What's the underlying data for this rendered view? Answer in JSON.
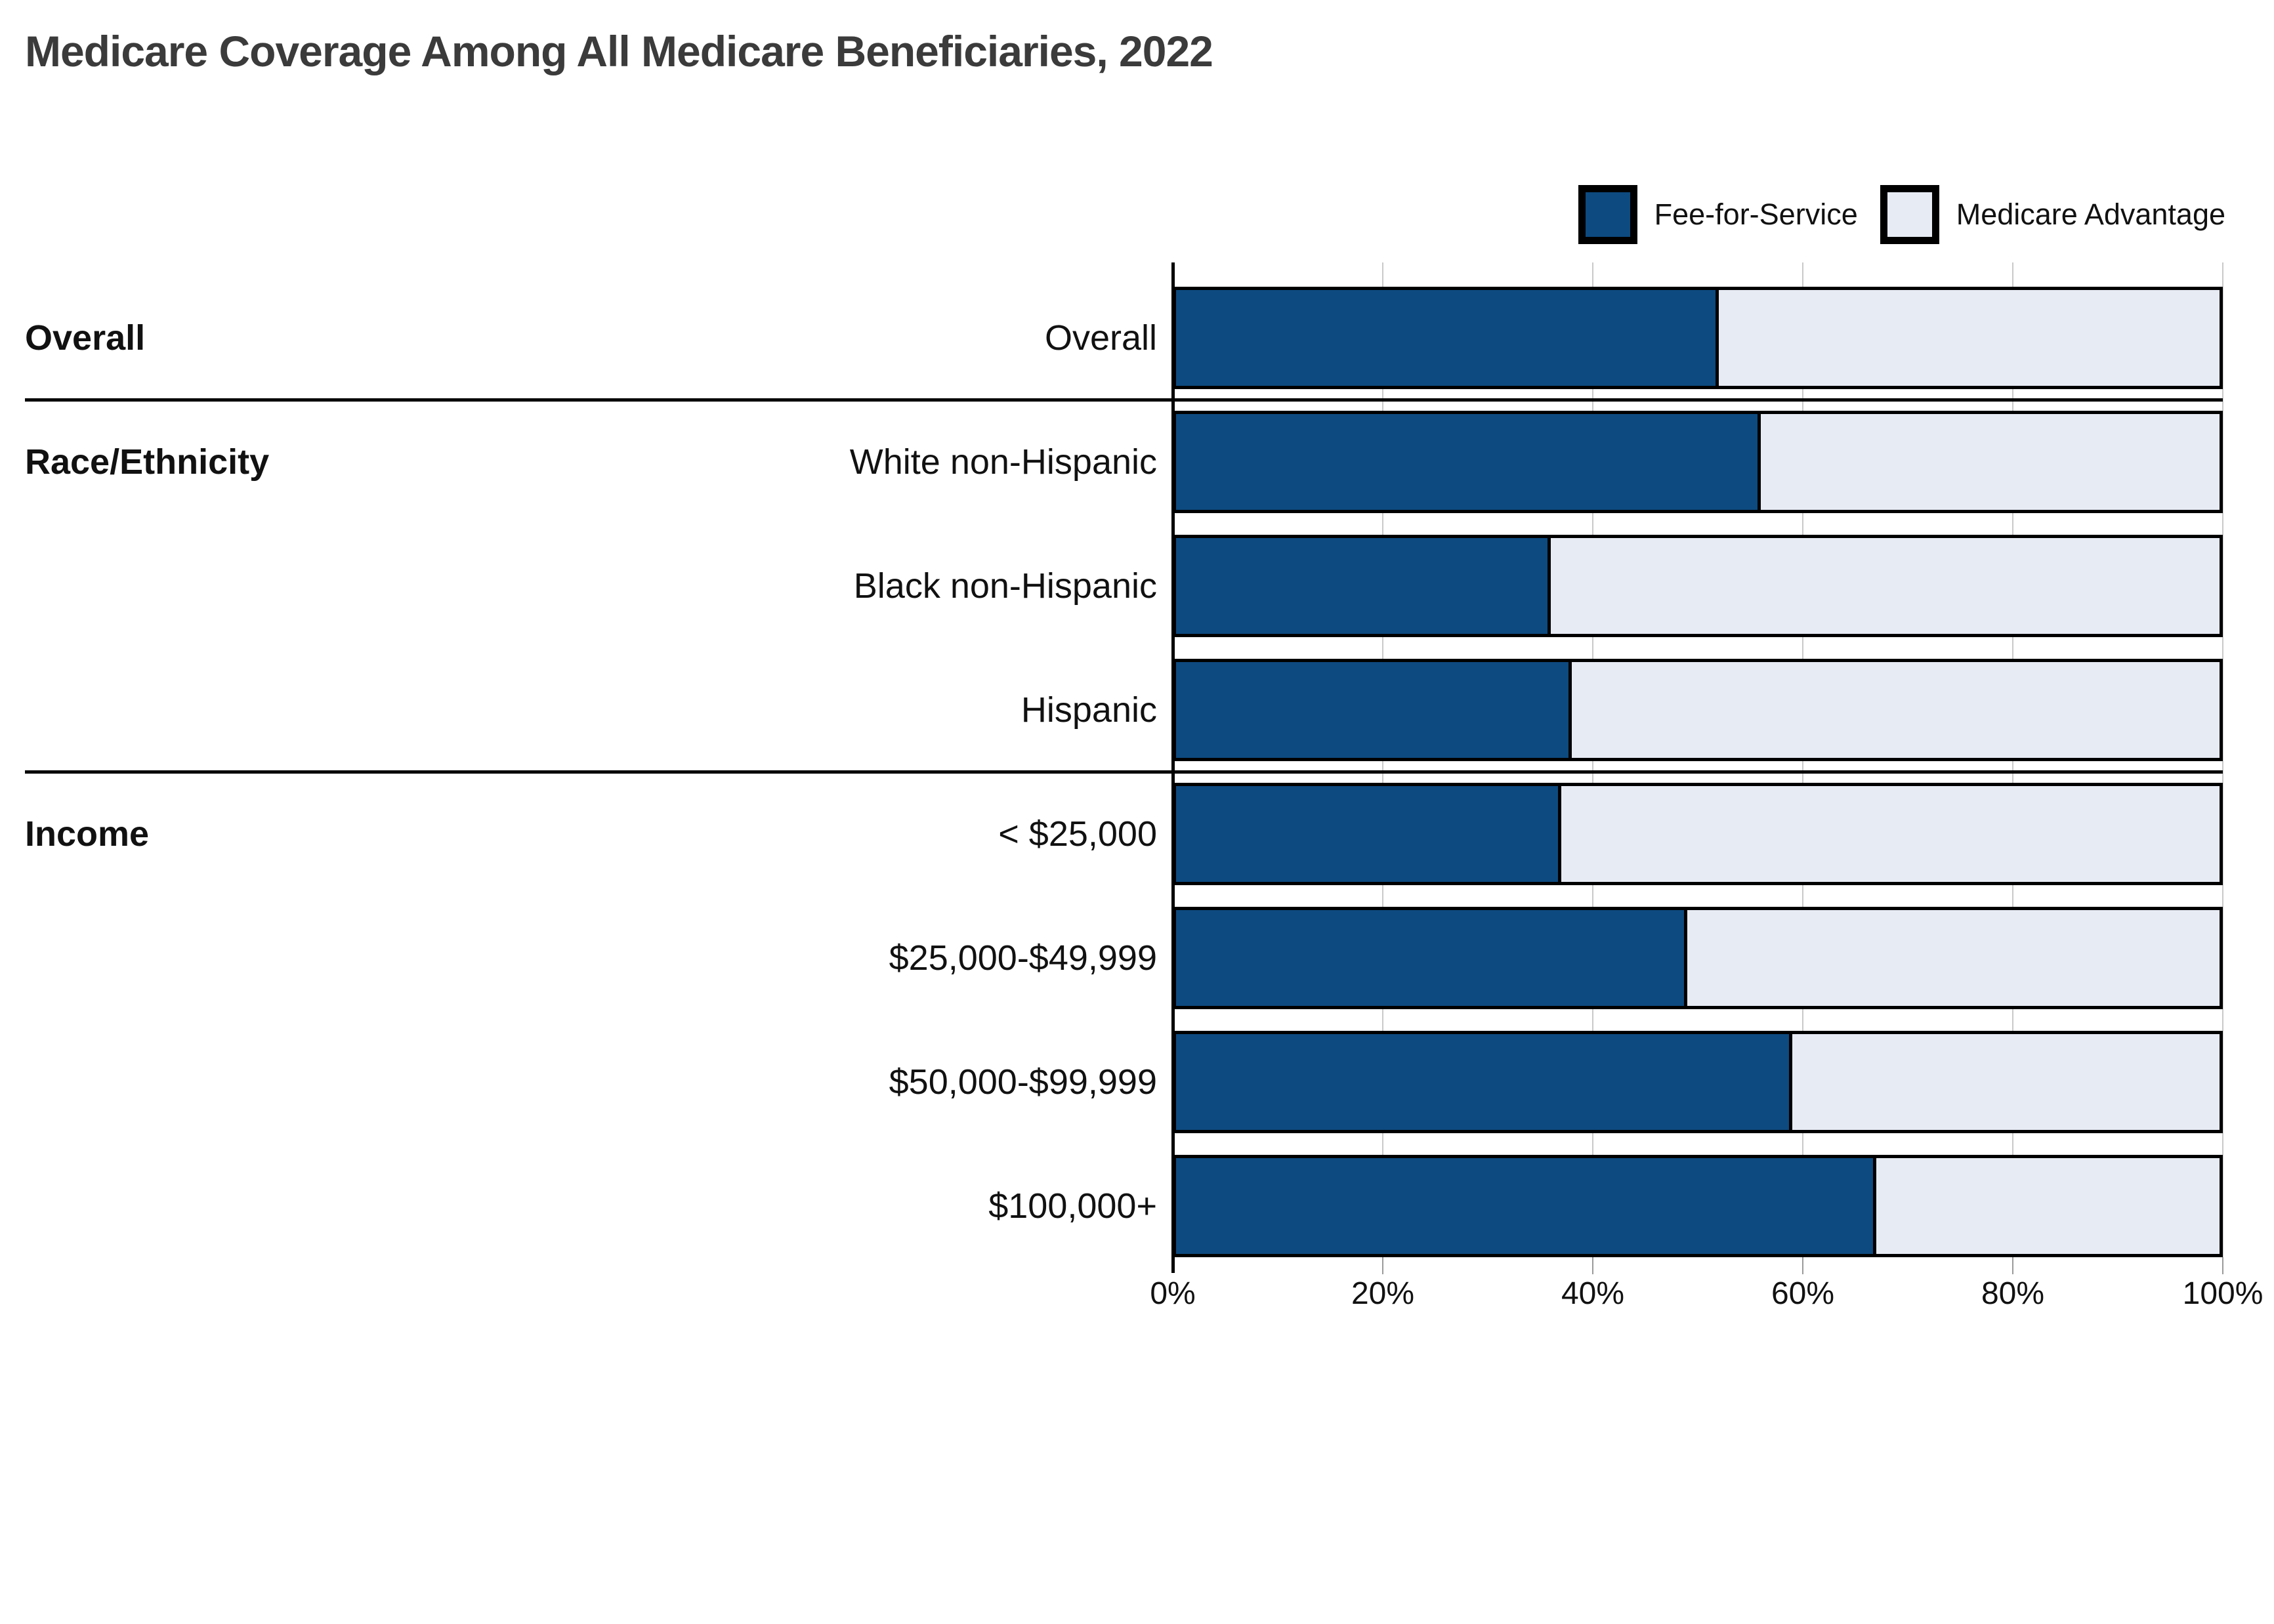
{
  "title": "Medicare Coverage Among All Medicare Beneficiaries, 2022",
  "legend": [
    {
      "label": "Fee-for-Service",
      "color": "#0d4a80"
    },
    {
      "label": "Medicare Advantage",
      "color": "#e7ebf4"
    }
  ],
  "axis": {
    "ticks": [
      {
        "label": "0%",
        "value": 0
      },
      {
        "label": "20%",
        "value": 20
      },
      {
        "label": "40%",
        "value": 40
      },
      {
        "label": "60%",
        "value": 60
      },
      {
        "label": "80%",
        "value": 80
      },
      {
        "label": "100%",
        "value": 100
      }
    ]
  },
  "chart_data": {
    "type": "bar",
    "stacked": true,
    "orientation": "horizontal",
    "title": "Medicare Coverage Among All Medicare Beneficiaries, 2022",
    "legend_position": "top-right",
    "grid": "vertical",
    "xlim": [
      0,
      100
    ],
    "x_tick_labels": [
      "0%",
      "20%",
      "40%",
      "60%",
      "80%",
      "100%"
    ],
    "categories": [
      "Overall",
      "White non-Hispanic",
      "Black non-Hispanic",
      "Hispanic",
      "< $25,000",
      "$25,000-$49,999",
      "$50,000-$99,999",
      "$100,000+"
    ],
    "series": [
      {
        "name": "Fee-for-Service",
        "values": [
          52,
          56,
          36,
          38,
          37,
          49,
          59,
          67
        ]
      },
      {
        "name": "Medicare Advantage",
        "values": [
          48,
          44,
          64,
          62,
          63,
          51,
          41,
          33
        ]
      }
    ],
    "groups": [
      {
        "label": "Overall",
        "rows": [
          {
            "category": "Overall",
            "fee_for_service": 52,
            "medicare_advantage": 48
          }
        ]
      },
      {
        "label": "Race/Ethnicity",
        "rows": [
          {
            "category": "White non-Hispanic",
            "fee_for_service": 56,
            "medicare_advantage": 44
          },
          {
            "category": "Black non-Hispanic",
            "fee_for_service": 36,
            "medicare_advantage": 64
          },
          {
            "category": "Hispanic",
            "fee_for_service": 38,
            "medicare_advantage": 62
          }
        ]
      },
      {
        "label": "Income",
        "rows": [
          {
            "category": "< $25,000",
            "fee_for_service": 37,
            "medicare_advantage": 63
          },
          {
            "category": "$25,000-$49,999",
            "fee_for_service": 49,
            "medicare_advantage": 51
          },
          {
            "category": "$50,000-$99,999",
            "fee_for_service": 59,
            "medicare_advantage": 41
          },
          {
            "category": "$100,000+",
            "fee_for_service": 67,
            "medicare_advantage": 33
          }
        ]
      }
    ],
    "colors": {
      "fee_for_service": "#0d4a80",
      "medicare_advantage": "#e7ebf4",
      "bar_border": "#000000",
      "gridline": "#c9c9c9"
    }
  }
}
